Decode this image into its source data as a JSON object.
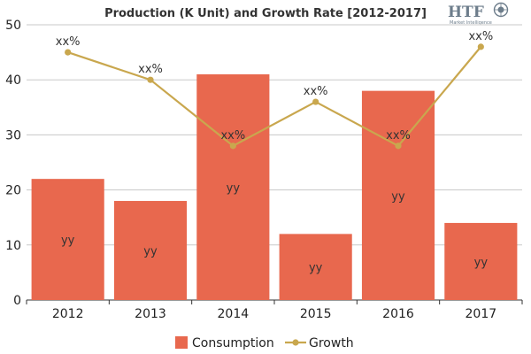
{
  "chart_data": {
    "type": "bar",
    "title": "Production (K Unit) and Growth Rate [2012-2017]",
    "categories": [
      "2012",
      "2013",
      "2014",
      "2015",
      "2016",
      "2017"
    ],
    "ylim": [
      0,
      50
    ],
    "yticks": [
      0,
      10,
      20,
      30,
      40,
      50
    ],
    "grid": true,
    "legend_position": "bottom",
    "series": [
      {
        "name": "Consumption",
        "type": "bar",
        "values": [
          22,
          18,
          41,
          12,
          38,
          14
        ],
        "labels": [
          "yy",
          "yy",
          "yy",
          "yy",
          "yy",
          "yy"
        ],
        "color": "#e8684e"
      },
      {
        "name": "Growth",
        "type": "line",
        "values": [
          45,
          40,
          28,
          36,
          28,
          46
        ],
        "labels": [
          "xx%",
          "xx%",
          "xx%",
          "xx%",
          "xx%",
          "xx%"
        ],
        "color": "#c9a74e"
      }
    ]
  },
  "logo": {
    "text": "HTF",
    "subtext": "Market Intelligence",
    "color": "#6d7d8b"
  }
}
